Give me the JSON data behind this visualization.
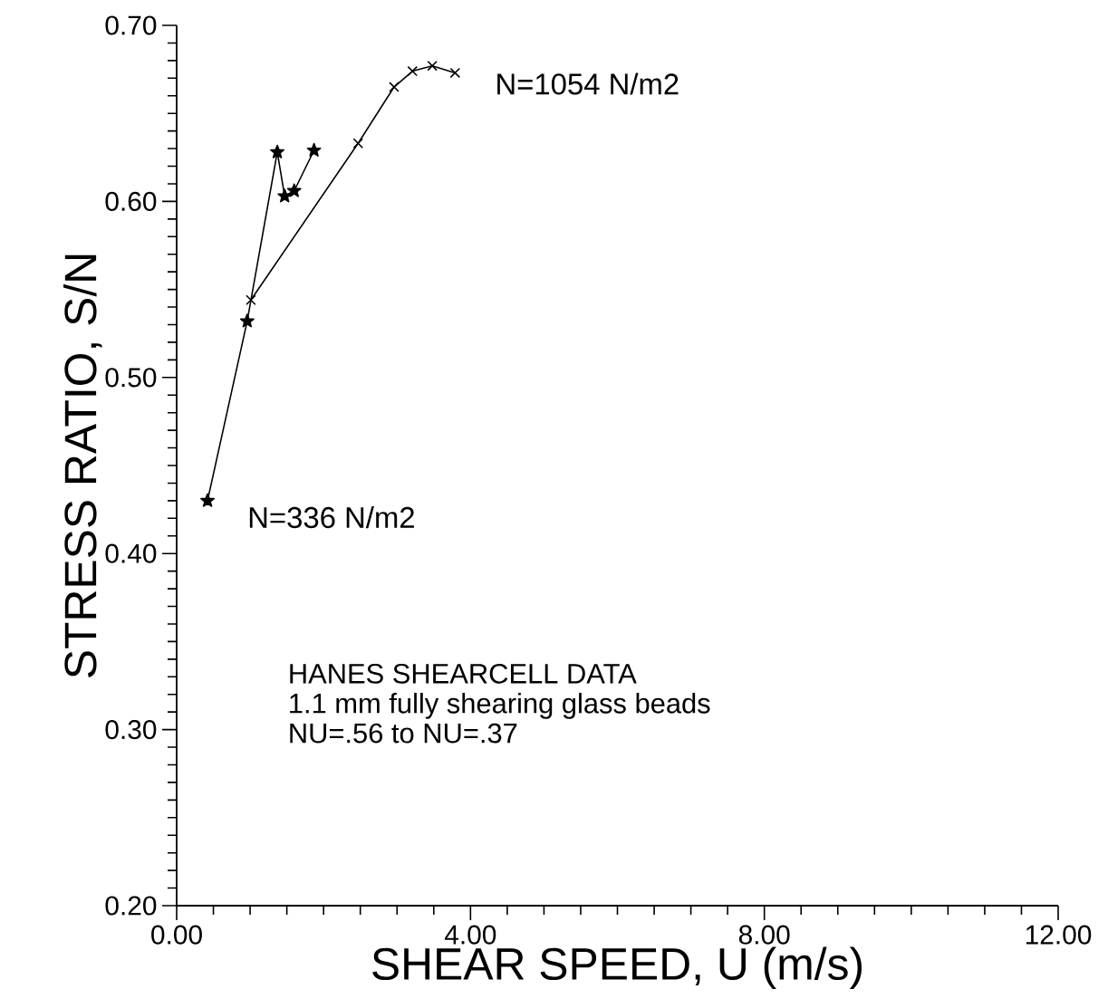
{
  "chart_data": {
    "type": "line",
    "xlabel": "SHEAR SPEED, U (m/s)",
    "ylabel": "STRESS RATIO, S/N",
    "xlim": [
      0,
      12
    ],
    "ylim": [
      0.2,
      0.7
    ],
    "xticks": [
      {
        "value": 0,
        "label": "0.00"
      },
      {
        "value": 0.5,
        "label": null
      },
      {
        "value": 1,
        "label": null
      },
      {
        "value": 1.5,
        "label": null
      },
      {
        "value": 2,
        "label": null
      },
      {
        "value": 2.5,
        "label": null
      },
      {
        "value": 3,
        "label": null
      },
      {
        "value": 3.5,
        "label": null
      },
      {
        "value": 4,
        "label": "4.00"
      },
      {
        "value": 4.5,
        "label": null
      },
      {
        "value": 5,
        "label": null
      },
      {
        "value": 5.5,
        "label": null
      },
      {
        "value": 6,
        "label": null
      },
      {
        "value": 6.5,
        "label": null
      },
      {
        "value": 7,
        "label": null
      },
      {
        "value": 7.5,
        "label": null
      },
      {
        "value": 8,
        "label": "8.00"
      },
      {
        "value": 8.5,
        "label": null
      },
      {
        "value": 9,
        "label": null
      },
      {
        "value": 9.5,
        "label": null
      },
      {
        "value": 10,
        "label": null
      },
      {
        "value": 10.5,
        "label": null
      },
      {
        "value": 11,
        "label": null
      },
      {
        "value": 11.5,
        "label": null
      },
      {
        "value": 12,
        "label": "12.00"
      }
    ],
    "yticks": [
      {
        "value": 0.2,
        "label": "0.20"
      },
      {
        "value": 0.21,
        "label": null
      },
      {
        "value": 0.22,
        "label": null
      },
      {
        "value": 0.23,
        "label": null
      },
      {
        "value": 0.24,
        "label": null
      },
      {
        "value": 0.25,
        "label": null
      },
      {
        "value": 0.26,
        "label": null
      },
      {
        "value": 0.27,
        "label": null
      },
      {
        "value": 0.28,
        "label": null
      },
      {
        "value": 0.29,
        "label": null
      },
      {
        "value": 0.3,
        "label": "0.30"
      },
      {
        "value": 0.31,
        "label": null
      },
      {
        "value": 0.32,
        "label": null
      },
      {
        "value": 0.33,
        "label": null
      },
      {
        "value": 0.34,
        "label": null
      },
      {
        "value": 0.35,
        "label": null
      },
      {
        "value": 0.36,
        "label": null
      },
      {
        "value": 0.37,
        "label": null
      },
      {
        "value": 0.38,
        "label": null
      },
      {
        "value": 0.39,
        "label": null
      },
      {
        "value": 0.4,
        "label": "0.40"
      },
      {
        "value": 0.41,
        "label": null
      },
      {
        "value": 0.42,
        "label": null
      },
      {
        "value": 0.43,
        "label": null
      },
      {
        "value": 0.44,
        "label": null
      },
      {
        "value": 0.45,
        "label": null
      },
      {
        "value": 0.46,
        "label": null
      },
      {
        "value": 0.47,
        "label": null
      },
      {
        "value": 0.48,
        "label": null
      },
      {
        "value": 0.49,
        "label": null
      },
      {
        "value": 0.5,
        "label": "0.50"
      },
      {
        "value": 0.51,
        "label": null
      },
      {
        "value": 0.52,
        "label": null
      },
      {
        "value": 0.53,
        "label": null
      },
      {
        "value": 0.54,
        "label": null
      },
      {
        "value": 0.55,
        "label": null
      },
      {
        "value": 0.56,
        "label": null
      },
      {
        "value": 0.57,
        "label": null
      },
      {
        "value": 0.58,
        "label": null
      },
      {
        "value": 0.59,
        "label": null
      },
      {
        "value": 0.6,
        "label": "0.60"
      },
      {
        "value": 0.61,
        "label": null
      },
      {
        "value": 0.62,
        "label": null
      },
      {
        "value": 0.63,
        "label": null
      },
      {
        "value": 0.64,
        "label": null
      },
      {
        "value": 0.65,
        "label": null
      },
      {
        "value": 0.66,
        "label": null
      },
      {
        "value": 0.67,
        "label": null
      },
      {
        "value": 0.68,
        "label": null
      },
      {
        "value": 0.69,
        "label": null
      },
      {
        "value": 0.7,
        "label": "0.70"
      }
    ],
    "series": [
      {
        "name": "N=336 N/m2",
        "color": "#000000",
        "marker": "star",
        "x": [
          0.42,
          0.96,
          1.37,
          1.47,
          1.6,
          1.87
        ],
        "values": [
          0.43,
          0.532,
          0.628,
          0.603,
          0.606,
          0.629
        ]
      },
      {
        "name": "N=1054 N/m2",
        "color": "#000000",
        "marker": "cross",
        "x": [
          1.01,
          2.47,
          2.96,
          3.21,
          3.48,
          3.79
        ],
        "values": [
          0.544,
          0.633,
          0.665,
          0.674,
          0.677,
          0.673
        ]
      }
    ],
    "annotations": [
      "HANES SHEARCELL DATA",
      "1.1 mm fully shearing glass beads",
      "NU=.56 to NU=.37"
    ],
    "grid": false,
    "legend": false
  }
}
